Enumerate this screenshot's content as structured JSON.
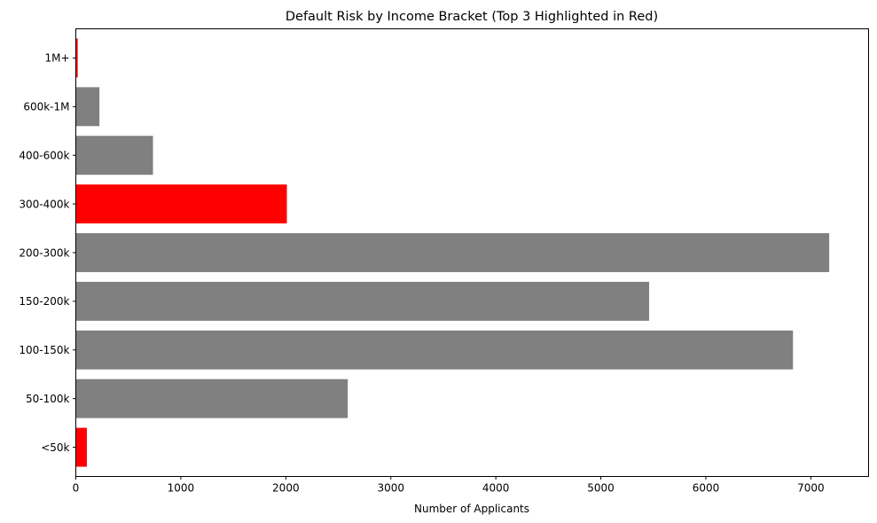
{
  "chart_data": {
    "type": "bar",
    "orientation": "horizontal",
    "title": "Default Risk by Income Bracket (Top 3 Highlighted in Red)",
    "xlabel": "Number of Applicants",
    "ylabel": "",
    "categories": [
      "<50k",
      "50-100k",
      "100-150k",
      "150-200k",
      "200-300k",
      "300-400k",
      "400-600k",
      "600k-1M",
      "1M+"
    ],
    "values": [
      105,
      2590,
      6830,
      5460,
      7175,
      2010,
      735,
      225,
      18
    ],
    "highlighted": [
      true,
      false,
      false,
      false,
      false,
      true,
      false,
      false,
      true
    ],
    "xlim": [
      0,
      7550
    ],
    "xticks": [
      0,
      1000,
      2000,
      3000,
      4000,
      5000,
      6000,
      7000
    ],
    "grid": false,
    "legend": "none",
    "colors": {
      "highlight": "#ff0000",
      "default": "#808080",
      "axis": "#000000",
      "background": "#ffffff"
    }
  }
}
